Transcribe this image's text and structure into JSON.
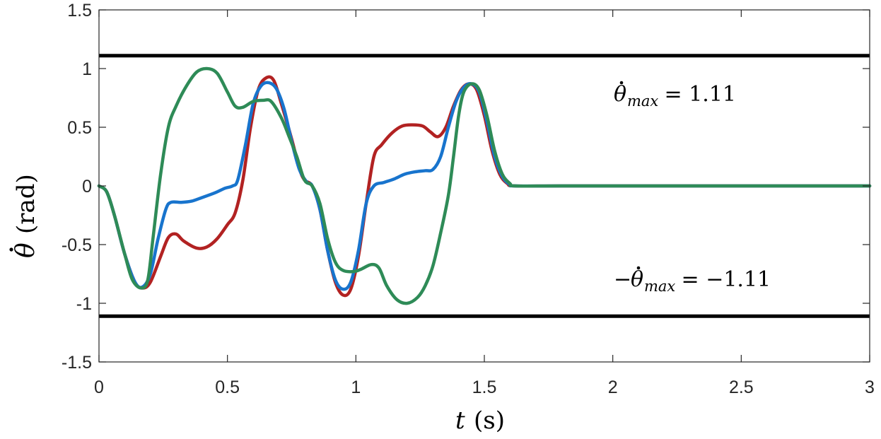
{
  "chart_data": {
    "type": "line",
    "xlabel": {
      "var": "t",
      "unit": "(s)"
    },
    "ylabel": {
      "var": "θ",
      "unit": "(rad)"
    },
    "xlim": [
      0,
      3
    ],
    "ylim": [
      -1.5,
      1.5
    ],
    "xticks": [
      0,
      0.5,
      1,
      1.5,
      2,
      2.5,
      3
    ],
    "xtick_labels": [
      "0",
      "0.5",
      "1",
      "1.5",
      "2",
      "2.5",
      "3"
    ],
    "yticks": [
      -1.5,
      -1,
      -0.5,
      0,
      0.5,
      1,
      1.5
    ],
    "ytick_labels": [
      "-1.5",
      "-1",
      "-0.5",
      "0",
      "0.5",
      "1",
      "1.5"
    ],
    "grid": false,
    "limits": [
      {
        "value": 1.11,
        "color": "#000000"
      },
      {
        "value": -1.11,
        "color": "#000000"
      }
    ],
    "annotations": [
      {
        "text_var": "θ",
        "text_sub": "max",
        "text_rest": " = 1.11",
        "x": 2.0,
        "y": 0.78
      },
      {
        "text_prefix": "−",
        "text_var": "θ",
        "text_sub": "max",
        "text_rest": " = −1.11",
        "x": 2.0,
        "y": -0.82
      }
    ],
    "series": [
      {
        "color": "#b22222",
        "points": [
          [
            0,
            0
          ],
          [
            0.03,
            -0.05
          ],
          [
            0.06,
            -0.25
          ],
          [
            0.1,
            -0.58
          ],
          [
            0.14,
            -0.82
          ],
          [
            0.17,
            -0.87
          ],
          [
            0.2,
            -0.82
          ],
          [
            0.24,
            -0.6
          ],
          [
            0.27,
            -0.44
          ],
          [
            0.3,
            -0.41
          ],
          [
            0.33,
            -0.47
          ],
          [
            0.38,
            -0.53
          ],
          [
            0.42,
            -0.52
          ],
          [
            0.46,
            -0.45
          ],
          [
            0.5,
            -0.33
          ],
          [
            0.53,
            -0.23
          ],
          [
            0.56,
            0.05
          ],
          [
            0.59,
            0.5
          ],
          [
            0.62,
            0.82
          ],
          [
            0.65,
            0.92
          ],
          [
            0.68,
            0.9
          ],
          [
            0.71,
            0.7
          ],
          [
            0.75,
            0.4
          ],
          [
            0.78,
            0.15
          ],
          [
            0.8,
            0.05
          ],
          [
            0.83,
            0
          ],
          [
            0.86,
            -0.2
          ],
          [
            0.89,
            -0.55
          ],
          [
            0.92,
            -0.82
          ],
          [
            0.95,
            -0.93
          ],
          [
            0.98,
            -0.88
          ],
          [
            1.01,
            -0.6
          ],
          [
            1.04,
            -0.15
          ],
          [
            1.07,
            0.25
          ],
          [
            1.1,
            0.35
          ],
          [
            1.14,
            0.45
          ],
          [
            1.18,
            0.51
          ],
          [
            1.22,
            0.52
          ],
          [
            1.26,
            0.51
          ],
          [
            1.29,
            0.46
          ],
          [
            1.32,
            0.42
          ],
          [
            1.35,
            0.5
          ],
          [
            1.38,
            0.68
          ],
          [
            1.41,
            0.82
          ],
          [
            1.44,
            0.87
          ],
          [
            1.47,
            0.82
          ],
          [
            1.5,
            0.6
          ],
          [
            1.53,
            0.3
          ],
          [
            1.56,
            0.1
          ],
          [
            1.59,
            0.02
          ],
          [
            1.62,
            0
          ],
          [
            1.8,
            0
          ],
          [
            2.2,
            0
          ],
          [
            2.6,
            0
          ],
          [
            3.0,
            0
          ]
        ]
      },
      {
        "color": "#1874cd",
        "points": [
          [
            0,
            0
          ],
          [
            0.03,
            -0.05
          ],
          [
            0.06,
            -0.25
          ],
          [
            0.1,
            -0.58
          ],
          [
            0.14,
            -0.82
          ],
          [
            0.17,
            -0.86
          ],
          [
            0.2,
            -0.75
          ],
          [
            0.23,
            -0.45
          ],
          [
            0.26,
            -0.2
          ],
          [
            0.28,
            -0.14
          ],
          [
            0.32,
            -0.14
          ],
          [
            0.36,
            -0.13
          ],
          [
            0.4,
            -0.1
          ],
          [
            0.45,
            -0.06
          ],
          [
            0.49,
            -0.02
          ],
          [
            0.52,
            0
          ],
          [
            0.54,
            0.05
          ],
          [
            0.57,
            0.35
          ],
          [
            0.6,
            0.7
          ],
          [
            0.63,
            0.85
          ],
          [
            0.66,
            0.88
          ],
          [
            0.69,
            0.83
          ],
          [
            0.72,
            0.66
          ],
          [
            0.75,
            0.38
          ],
          [
            0.78,
            0.14
          ],
          [
            0.81,
            0.03
          ],
          [
            0.83,
            0
          ],
          [
            0.86,
            -0.2
          ],
          [
            0.89,
            -0.55
          ],
          [
            0.92,
            -0.8
          ],
          [
            0.95,
            -0.88
          ],
          [
            0.98,
            -0.82
          ],
          [
            1.01,
            -0.55
          ],
          [
            1.04,
            -0.15
          ],
          [
            1.07,
            0
          ],
          [
            1.11,
            0.03
          ],
          [
            1.15,
            0.06
          ],
          [
            1.19,
            0.1
          ],
          [
            1.23,
            0.12
          ],
          [
            1.27,
            0.13
          ],
          [
            1.3,
            0.14
          ],
          [
            1.33,
            0.25
          ],
          [
            1.36,
            0.5
          ],
          [
            1.39,
            0.72
          ],
          [
            1.42,
            0.84
          ],
          [
            1.45,
            0.87
          ],
          [
            1.48,
            0.8
          ],
          [
            1.51,
            0.55
          ],
          [
            1.54,
            0.25
          ],
          [
            1.57,
            0.08
          ],
          [
            1.6,
            0.01
          ],
          [
            1.62,
            0
          ],
          [
            1.8,
            0
          ],
          [
            2.2,
            0
          ],
          [
            2.6,
            0
          ],
          [
            3.0,
            0
          ]
        ]
      },
      {
        "color": "#2e8b57",
        "points": [
          [
            0,
            0
          ],
          [
            0.03,
            -0.05
          ],
          [
            0.06,
            -0.25
          ],
          [
            0.1,
            -0.58
          ],
          [
            0.13,
            -0.8
          ],
          [
            0.165,
            -0.87
          ],
          [
            0.19,
            -0.8
          ],
          [
            0.21,
            -0.45
          ],
          [
            0.24,
            0.1
          ],
          [
            0.27,
            0.5
          ],
          [
            0.3,
            0.68
          ],
          [
            0.34,
            0.85
          ],
          [
            0.38,
            0.97
          ],
          [
            0.42,
            1.0
          ],
          [
            0.46,
            0.96
          ],
          [
            0.5,
            0.8
          ],
          [
            0.53,
            0.68
          ],
          [
            0.56,
            0.67
          ],
          [
            0.6,
            0.72
          ],
          [
            0.64,
            0.73
          ],
          [
            0.67,
            0.72
          ],
          [
            0.71,
            0.58
          ],
          [
            0.74,
            0.42
          ],
          [
            0.77,
            0.25
          ],
          [
            0.8,
            0.05
          ],
          [
            0.83,
            0
          ],
          [
            0.86,
            -0.15
          ],
          [
            0.89,
            -0.45
          ],
          [
            0.92,
            -0.65
          ],
          [
            0.95,
            -0.72
          ],
          [
            0.99,
            -0.73
          ],
          [
            1.02,
            -0.71
          ],
          [
            1.06,
            -0.67
          ],
          [
            1.09,
            -0.7
          ],
          [
            1.12,
            -0.85
          ],
          [
            1.16,
            -0.97
          ],
          [
            1.2,
            -1.0
          ],
          [
            1.24,
            -0.95
          ],
          [
            1.27,
            -0.85
          ],
          [
            1.3,
            -0.68
          ],
          [
            1.33,
            -0.4
          ],
          [
            1.36,
            -0.08
          ],
          [
            1.38,
            0.25
          ],
          [
            1.4,
            0.6
          ],
          [
            1.42,
            0.8
          ],
          [
            1.45,
            0.87
          ],
          [
            1.48,
            0.82
          ],
          [
            1.51,
            0.6
          ],
          [
            1.54,
            0.3
          ],
          [
            1.57,
            0.1
          ],
          [
            1.6,
            0.02
          ],
          [
            1.62,
            0
          ],
          [
            1.8,
            0
          ],
          [
            2.2,
            0
          ],
          [
            2.6,
            0
          ],
          [
            3.0,
            0
          ]
        ]
      }
    ]
  }
}
